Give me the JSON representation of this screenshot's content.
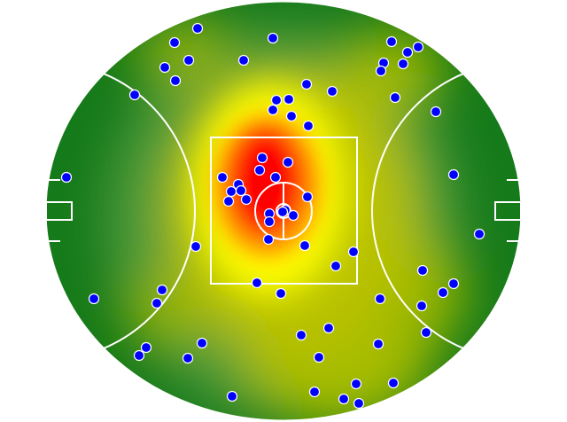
{
  "chart_data": {
    "type": "heatmap",
    "title": "",
    "xlabel": "",
    "ylabel": "",
    "background": "australian-football-field",
    "colormap": [
      "#157a1a",
      "#b8c400",
      "#ffff00",
      "#ff9900",
      "#ff0000"
    ],
    "marker_color": "#0000ff",
    "marker_edge_color": "#ffffff",
    "line_color": "#ffffff",
    "points": [
      {
        "x": -29.1,
        "y": 61.8
      },
      {
        "x": -36.9,
        "y": 57
      },
      {
        "x": -3.6,
        "y": 58.5
      },
      {
        "x": -32.1,
        "y": 51
      },
      {
        "x": -40.2,
        "y": 48.6
      },
      {
        "x": -13.5,
        "y": 51
      },
      {
        "x": -36.6,
        "y": 44.1
      },
      {
        "x": -50.4,
        "y": 39.3
      },
      {
        "x": 36.6,
        "y": 57.3
      },
      {
        "x": 45.6,
        "y": 55.5
      },
      {
        "x": 42,
        "y": 53.7
      },
      {
        "x": 33.9,
        "y": 50.1
      },
      {
        "x": 40.5,
        "y": 49.8
      },
      {
        "x": 33,
        "y": 47.4
      },
      {
        "x": 7.8,
        "y": 42.9
      },
      {
        "x": 16.5,
        "y": 40.5
      },
      {
        "x": -2.4,
        "y": 37.5
      },
      {
        "x": 1.8,
        "y": 37.8
      },
      {
        "x": -3.6,
        "y": 34.2
      },
      {
        "x": 2.7,
        "y": 32.1
      },
      {
        "x": 8.4,
        "y": 28.8
      },
      {
        "x": 37.8,
        "y": 38.4
      },
      {
        "x": 51.6,
        "y": 33.6
      },
      {
        "x": -73.5,
        "y": 11.4
      },
      {
        "x": -7.2,
        "y": 18
      },
      {
        "x": 1.5,
        "y": 16.5
      },
      {
        "x": -8.1,
        "y": 13.8
      },
      {
        "x": -20.7,
        "y": 11.4
      },
      {
        "x": -2.7,
        "y": 11.4
      },
      {
        "x": -15.3,
        "y": 9
      },
      {
        "x": -17.7,
        "y": 6.6
      },
      {
        "x": -14.4,
        "y": 6.9
      },
      {
        "x": -18.6,
        "y": 3.3
      },
      {
        "x": -12.6,
        "y": 3.9
      },
      {
        "x": 8.1,
        "y": 4.8
      },
      {
        "x": -4.8,
        "y": -0.9
      },
      {
        "x": 0.6,
        "y": 0.3
      },
      {
        "x": -0.3,
        "y": -0.3
      },
      {
        "x": 3.3,
        "y": -1.5
      },
      {
        "x": -4.8,
        "y": -3.6
      },
      {
        "x": -5.1,
        "y": -9.6
      },
      {
        "x": 7.2,
        "y": -11.7
      },
      {
        "x": -29.7,
        "y": -12
      },
      {
        "x": 57.6,
        "y": 12.3
      },
      {
        "x": 66.3,
        "y": -7.8
      },
      {
        "x": 23.7,
        "y": -13.8
      },
      {
        "x": 17.7,
        "y": -18.6
      },
      {
        "x": -9,
        "y": -24.3
      },
      {
        "x": -0.9,
        "y": -27.9
      },
      {
        "x": -41.1,
        "y": -26.7
      },
      {
        "x": -42.9,
        "y": -31.2
      },
      {
        "x": -64.2,
        "y": -29.7
      },
      {
        "x": 32.7,
        "y": -29.7
      },
      {
        "x": 47.1,
        "y": -20.1
      },
      {
        "x": 57.6,
        "y": -24.6
      },
      {
        "x": 54,
        "y": -27.6
      },
      {
        "x": 46.8,
        "y": -32.1
      },
      {
        "x": 48.3,
        "y": -41.1
      },
      {
        "x": 15.3,
        "y": -39.6
      },
      {
        "x": 6,
        "y": -42
      },
      {
        "x": -27.6,
        "y": -44.7
      },
      {
        "x": -46.5,
        "y": -46.2
      },
      {
        "x": -48.9,
        "y": -48.9
      },
      {
        "x": -32.4,
        "y": -49.8
      },
      {
        "x": 12,
        "y": -49.5
      },
      {
        "x": 32.1,
        "y": -45
      },
      {
        "x": 37.2,
        "y": -58.2
      },
      {
        "x": 24.6,
        "y": -58.5
      },
      {
        "x": 10.5,
        "y": -61.2
      },
      {
        "x": 20.4,
        "y": -63.6
      },
      {
        "x": 25.5,
        "y": -65.1
      },
      {
        "x": -17.4,
        "y": -62.7
      }
    ]
  }
}
